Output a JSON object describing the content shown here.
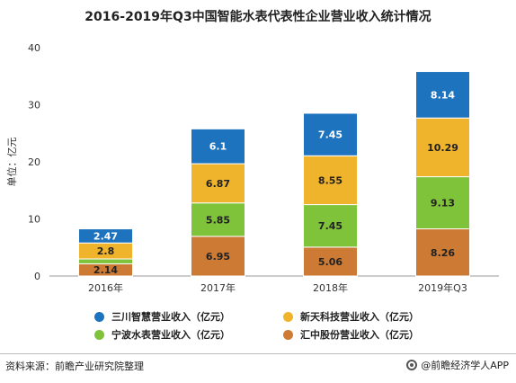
{
  "title": "2016-2019年Q3中国智能水表代表性企业营业收入统计情况",
  "chart_data": {
    "type": "bar",
    "stacked": true,
    "ylabel": "单位：亿元",
    "ylim": [
      0,
      40
    ],
    "yticks": [
      0,
      10,
      20,
      30,
      40
    ],
    "categories": [
      "2016年",
      "2017年",
      "2018年",
      "2019年Q3"
    ],
    "series": [
      {
        "name": "汇中股份营业收入（亿元）",
        "color": "#cd7b34",
        "values": [
          2.14,
          6.95,
          5.06,
          8.26
        ]
      },
      {
        "name": "宁波水表营业收入（亿元）",
        "color": "#7ec33a",
        "values": [
          0.85,
          5.85,
          7.45,
          9.13
        ]
      },
      {
        "name": "新天科技营业收入（亿元）",
        "color": "#f0b32c",
        "values": [
          2.8,
          6.87,
          8.55,
          10.29
        ]
      },
      {
        "name": "三川智慧营业收入（亿元）",
        "color": "#1e73be",
        "values": [
          2.47,
          6.1,
          7.45,
          8.14
        ]
      }
    ],
    "data_labels": [
      [
        "2.14",
        "",
        "2.8",
        "2.47"
      ],
      [
        "6.95",
        "5.85",
        "6.87",
        "6.1"
      ],
      [
        "5.06",
        "7.45",
        "8.55",
        "7.45"
      ],
      [
        "8.26",
        "9.13",
        "10.29",
        "8.14"
      ]
    ],
    "legend": {
      "placement": "bottom",
      "items": [
        {
          "label": "三川智慧营业收入（亿元）",
          "color": "#1e73be"
        },
        {
          "label": "新天科技营业收入（亿元）",
          "color": "#f0b32c"
        },
        {
          "label": "宁波水表营业收入（亿元）",
          "color": "#7ec33a"
        },
        {
          "label": "汇中股份营业收入（亿元）",
          "color": "#cd7b34"
        }
      ]
    },
    "grid": false
  },
  "footer": {
    "source": "资料来源：前瞻产业研究院整理",
    "brand": "@前瞻经济学人APP"
  }
}
